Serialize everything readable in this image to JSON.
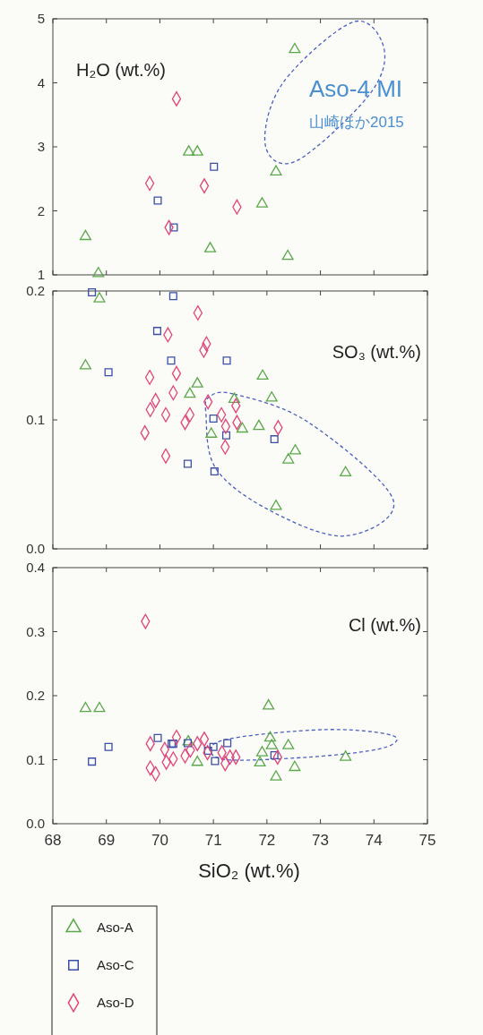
{
  "chart_data": [
    {
      "type": "scatter",
      "ylabel": "H₂O (wt.%)",
      "xlim": [
        68,
        75
      ],
      "xticks": [
        68,
        69,
        70,
        71,
        72,
        73,
        74,
        75
      ],
      "ylim": [
        1,
        5
      ],
      "yticks": [
        1,
        2,
        3,
        4,
        5
      ],
      "tick_labels": "y",
      "annotations": [
        "Aso-4 MI",
        "山崎ほか2015"
      ],
      "series": [
        {
          "color": "#5aa84a",
          "marker": "triangle",
          "x": [
            68.61,
            68.85,
            70.54,
            70.7,
            70.94,
            71.91,
            72.17,
            72.52,
            72.39
          ],
          "values": [
            1.6,
            1.02,
            2.92,
            2.92,
            1.41,
            2.11,
            2.61,
            4.52,
            1.29
          ]
        },
        {
          "color": "#3a4fa8",
          "marker": "square",
          "x": [
            69.96,
            70.26,
            71.01
          ],
          "values": [
            2.16,
            1.74,
            2.69
          ]
        },
        {
          "color": "#e0457a",
          "marker": "diamond",
          "x": [
            70.31,
            69.81,
            70.17,
            70.83,
            71.44
          ],
          "values": [
            3.75,
            2.43,
            1.74,
            2.39,
            2.06
          ]
        }
      ]
    },
    {
      "type": "scatter",
      "ylabel": "SO₃ (wt.%)",
      "xlim": [
        68,
        75
      ],
      "xticks": [
        68,
        69,
        70,
        71,
        72,
        73,
        74,
        75
      ],
      "ylim": [
        0,
        0.2
      ],
      "yticks": [
        {
          "value": 0,
          "label": "0.0"
        },
        0.1,
        0.2
      ],
      "tick_labels": "y",
      "series": [
        {
          "color": "#5aa84a",
          "marker": "triangle",
          "x": [
            68.61,
            68.87,
            70.7,
            70.56,
            70.96,
            71.39,
            71.54,
            71.85,
            71.92,
            72.09,
            72.53,
            72.4,
            72.17,
            73.47
          ],
          "values": [
            0.142,
            0.194,
            0.128,
            0.12,
            0.089,
            0.116,
            0.093,
            0.095,
            0.134,
            0.117,
            0.076,
            0.069,
            0.033,
            0.059
          ]
        },
        {
          "color": "#3a4fa8",
          "marker": "square",
          "x": [
            68.73,
            69.04,
            70.25,
            69.95,
            70.21,
            71.25,
            71.0,
            71.24,
            72.14,
            70.52,
            71.02
          ],
          "values": [
            0.199,
            0.137,
            0.196,
            0.169,
            0.146,
            0.146,
            0.101,
            0.088,
            0.085,
            0.066,
            0.06
          ]
        },
        {
          "color": "#e0457a",
          "marker": "diamond",
          "x": [
            70.71,
            70.15,
            70.87,
            70.82,
            69.81,
            70.31,
            70.25,
            69.92,
            69.82,
            70.11,
            69.72,
            70.56,
            70.47,
            70.9,
            71.15,
            71.23,
            71.44,
            71.42,
            71.22,
            72.21,
            70.11
          ],
          "values": [
            0.183,
            0.166,
            0.159,
            0.154,
            0.133,
            0.136,
            0.121,
            0.115,
            0.108,
            0.104,
            0.09,
            0.104,
            0.098,
            0.114,
            0.104,
            0.095,
            0.098,
            0.111,
            0.079,
            0.094,
            0.072
          ]
        }
      ]
    },
    {
      "type": "scatter",
      "ylabel": "Cl (wt.%)",
      "xlabel": "SiO₂ (wt.%)",
      "xlim": [
        68,
        75
      ],
      "xticks": [
        68,
        69,
        70,
        71,
        72,
        73,
        74,
        75
      ],
      "ylim": [
        0,
        0.4
      ],
      "yticks": [
        {
          "value": 0,
          "label": "0.0"
        },
        0.1,
        0.2,
        0.3,
        0.4
      ],
      "legend": "bottom left",
      "series": [
        {
          "name": "Aso-A",
          "color": "#5aa84a",
          "marker": "triangle",
          "x": [
            68.61,
            68.87,
            72.03,
            70.7,
            71.87,
            72.4,
            72.52,
            72.17,
            72.06,
            72.09,
            71.91,
            73.47,
            70.53
          ],
          "values": [
            0.18,
            0.18,
            0.184,
            0.096,
            0.095,
            0.122,
            0.088,
            0.073,
            0.134,
            0.122,
            0.111,
            0.104,
            0.128
          ]
        },
        {
          "name": "Aso-C",
          "color": "#3a4fa8",
          "marker": "square",
          "x": [
            68.73,
            69.04,
            69.96,
            70.22,
            70.25,
            70.52,
            71.0,
            71.03,
            71.26,
            70.9,
            72.14
          ],
          "values": [
            0.097,
            0.12,
            0.134,
            0.125,
            0.125,
            0.126,
            0.12,
            0.098,
            0.126,
            0.114,
            0.107
          ]
        },
        {
          "name": "Aso-D",
          "color": "#e0457a",
          "marker": "diamond",
          "x": [
            69.73,
            69.82,
            69.82,
            69.92,
            70.12,
            70.09,
            70.25,
            70.31,
            70.47,
            70.57,
            70.7,
            70.83,
            70.89,
            71.16,
            71.22,
            71.31,
            71.42,
            72.2
          ],
          "values": [
            0.316,
            0.125,
            0.087,
            0.078,
            0.096,
            0.116,
            0.101,
            0.135,
            0.106,
            0.115,
            0.125,
            0.132,
            0.111,
            0.111,
            0.094,
            0.104,
            0.104,
            0.104
          ]
        }
      ]
    }
  ]
}
